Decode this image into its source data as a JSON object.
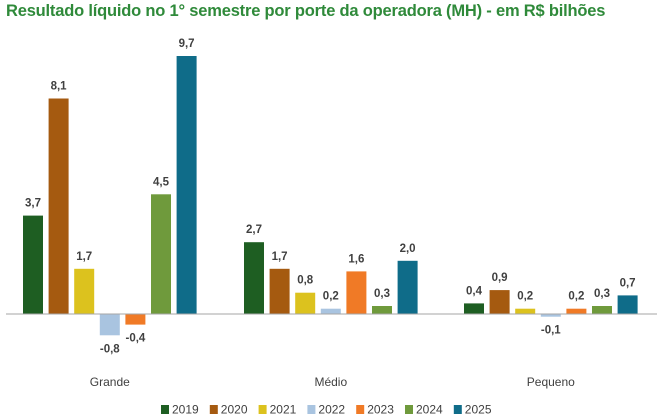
{
  "chart_data": {
    "type": "bar",
    "title": "Resultado líquido no 1° semestre por porte da operadora (MH) - em R$ bilhões",
    "xlabel": "",
    "ylabel": "",
    "ylim": [
      -1.5,
      10.5
    ],
    "grid": false,
    "legend_position": "bottom",
    "categories": [
      "Grande",
      "Médio",
      "Pequeno"
    ],
    "series": [
      {
        "name": "2019",
        "color": "#1e5e22",
        "values": [
          3.7,
          2.7,
          0.4
        ],
        "labels": [
          "3,7",
          "2,7",
          "0,4"
        ]
      },
      {
        "name": "2020",
        "color": "#a55a10",
        "values": [
          8.1,
          1.7,
          0.9
        ],
        "labels": [
          "8,1",
          "1,7",
          "0,9"
        ]
      },
      {
        "name": "2021",
        "color": "#dcc21e",
        "values": [
          1.7,
          0.8,
          0.2
        ],
        "labels": [
          "1,7",
          "0,8",
          "0,2"
        ]
      },
      {
        "name": "2022",
        "color": "#a9c4e0",
        "values": [
          -0.8,
          0.2,
          -0.1
        ],
        "labels": [
          "-0,8",
          "0,2",
          "-0,1"
        ]
      },
      {
        "name": "2023",
        "color": "#f07a26",
        "values": [
          -0.4,
          1.6,
          0.2
        ],
        "labels": [
          "-0,4",
          "1,6",
          "0,2"
        ]
      },
      {
        "name": "2024",
        "color": "#6f9a3c",
        "values": [
          4.5,
          0.3,
          0.3
        ],
        "labels": [
          "4,5",
          "0,3",
          "0,3"
        ]
      },
      {
        "name": "2025",
        "color": "#0f6c89",
        "values": [
          9.7,
          2.0,
          0.7
        ],
        "labels": [
          "9,7",
          "2,0",
          "0,7"
        ]
      }
    ]
  }
}
